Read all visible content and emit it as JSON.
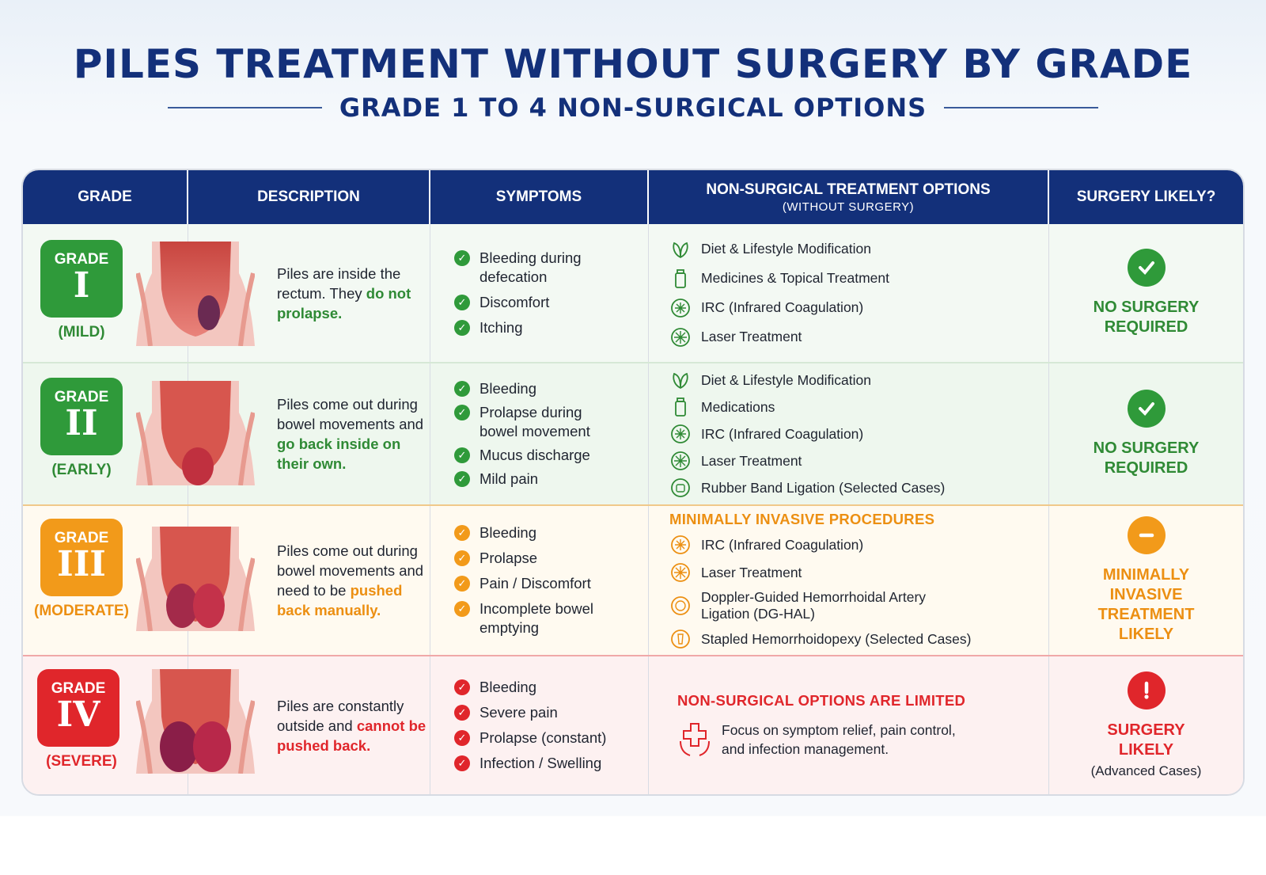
{
  "title": "PILES TREATMENT  WITHOUT SURGERY BY GRADE",
  "subtitle": "GRADE 1 TO 4 NON-SURGICAL OPTIONS",
  "headers": {
    "grade": "GRADE",
    "description": "DESCRIPTION",
    "symptoms": "SYMPTOMS",
    "treatment": "NON-SURGICAL TREATMENT OPTIONS",
    "treatment_sub": "(WITHOUT SURGERY)",
    "surgery": "SURGERY LIKELY?"
  },
  "colors": {
    "navy": "#13307a",
    "green": "#2f9a3a",
    "orange": "#f29a1a",
    "red": "#e0262b"
  },
  "rows": [
    {
      "badge_label": "GRADE",
      "numeral": "I",
      "severity": "(MILD)",
      "desc_plain": "Piles are inside the rectum. They ",
      "desc_highlight": "do not prolapse.",
      "symptoms": [
        "Bleeding during defecation",
        "Discomfort",
        "Itching"
      ],
      "treatment_heading": "",
      "treatments": [
        {
          "label": "Diet & Lifestyle Modification",
          "icon": "leaf-icon"
        },
        {
          "label": "Medicines & Topical Treatment",
          "icon": "medicine-bottle-icon"
        },
        {
          "label": "IRC (Infrared Coagulation)",
          "icon": "infrared-icon"
        },
        {
          "label": "Laser Treatment",
          "icon": "laser-icon"
        }
      ],
      "surgery_text": "NO SURGERY REQUIRED",
      "surgery_note": "",
      "surgery_icon": "check-circle-icon"
    },
    {
      "badge_label": "GRADE",
      "numeral": "II",
      "severity": "(EARLY)",
      "desc_plain": "Piles come out during bowel movements and ",
      "desc_highlight": "go back inside on their own.",
      "symptoms": [
        "Bleeding",
        "Prolapse during bowel movement",
        "Mucus discharge",
        "Mild pain"
      ],
      "treatment_heading": "",
      "treatments": [
        {
          "label": "Diet & Lifestyle Modification",
          "icon": "leaf-icon"
        },
        {
          "label": "Medications",
          "icon": "medicine-bottle-icon"
        },
        {
          "label": "IRC (Infrared Coagulation)",
          "icon": "infrared-icon"
        },
        {
          "label": "Laser Treatment",
          "icon": "laser-icon"
        },
        {
          "label": "Rubber Band Ligation (Selected Cases)",
          "icon": "band-ligation-icon"
        }
      ],
      "surgery_text": "NO SURGERY REQUIRED",
      "surgery_note": "",
      "surgery_icon": "check-circle-icon"
    },
    {
      "badge_label": "GRADE",
      "numeral": "III",
      "severity": "(MODERATE)",
      "desc_plain": "Piles come out during bowel movements and need to be ",
      "desc_highlight": "pushed back manually.",
      "symptoms": [
        "Bleeding",
        "Prolapse",
        "Pain / Discomfort",
        "Incomplete bowel emptying"
      ],
      "treatment_heading": "MINIMALLY INVASIVE PROCEDURES",
      "treatments": [
        {
          "label": "IRC (Infrared Coagulation)",
          "icon": "infrared-icon"
        },
        {
          "label": "Laser Treatment",
          "icon": "laser-icon"
        },
        {
          "label": "Doppler-Guided Hemorrhoidal Artery Ligation (DG-HAL)",
          "icon": "doppler-icon"
        },
        {
          "label": "Stapled Hemorrhoidopexy (Selected Cases)",
          "icon": "stapler-icon"
        }
      ],
      "surgery_text": "MINIMALLY INVASIVE TREATMENT LIKELY",
      "surgery_note": "",
      "surgery_icon": "minus-circle-icon"
    },
    {
      "badge_label": "GRADE",
      "numeral": "IV",
      "severity": "(SEVERE)",
      "desc_plain": "Piles are constantly outside and ",
      "desc_highlight": "cannot be pushed back.",
      "symptoms": [
        "Bleeding",
        "Severe pain",
        "Prolapse (constant)",
        "Infection / Swelling"
      ],
      "treatment_heading": "NON-SURGICAL OPTIONS ARE LIMITED",
      "treatment_note": "Focus on symptom relief, pain control, and infection management.",
      "treatments": [],
      "surgery_text": "SURGERY LIKELY",
      "surgery_note": "(Advanced Cases)",
      "surgery_icon": "exclamation-circle-icon"
    }
  ]
}
